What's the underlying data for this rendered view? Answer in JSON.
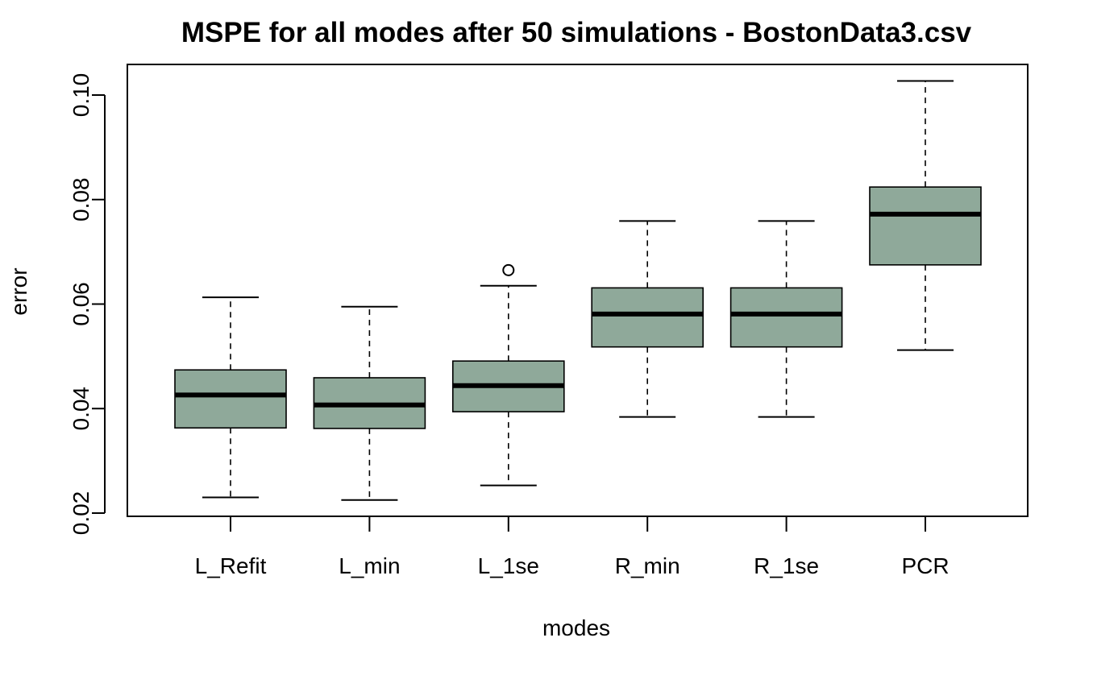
{
  "chart_data": {
    "type": "boxplot",
    "title": "MSPE for all modes after 50 simulations - BostonData3.csv",
    "xlabel": "modes",
    "ylabel": "error",
    "ylim": [
      0.02,
      0.1
    ],
    "yticks": [
      "0.02",
      "0.04",
      "0.06",
      "0.08",
      "0.10"
    ],
    "grid": false,
    "box_color": "#8fa99a",
    "categories": [
      "L_Refit",
      "L_min",
      "L_1se",
      "R_min",
      "R_1se",
      "PCR"
    ],
    "boxes": [
      {
        "min": 0.023,
        "q1": 0.0363,
        "median": 0.0426,
        "q3": 0.0474,
        "max": 0.0613,
        "outliers": []
      },
      {
        "min": 0.0225,
        "q1": 0.0362,
        "median": 0.0407,
        "q3": 0.0459,
        "max": 0.0595,
        "outliers": []
      },
      {
        "min": 0.0253,
        "q1": 0.0394,
        "median": 0.0444,
        "q3": 0.0491,
        "max": 0.0635,
        "outliers": [
          0.0665
        ]
      },
      {
        "min": 0.0384,
        "q1": 0.0518,
        "median": 0.0581,
        "q3": 0.0631,
        "max": 0.0759,
        "outliers": []
      },
      {
        "min": 0.0384,
        "q1": 0.0518,
        "median": 0.0581,
        "q3": 0.0631,
        "max": 0.0759,
        "outliers": []
      },
      {
        "min": 0.0512,
        "q1": 0.0675,
        "median": 0.0772,
        "q3": 0.0824,
        "max": 0.1027,
        "outliers": []
      }
    ]
  }
}
